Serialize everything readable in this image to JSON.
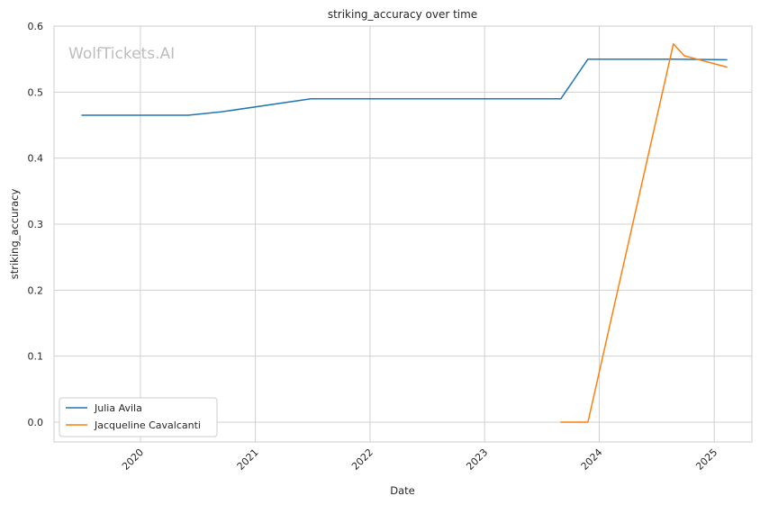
{
  "watermark": "WolfTickets.AI",
  "chart_data": {
    "type": "line",
    "title": "striking_accuracy over time",
    "xlabel": "Date",
    "ylabel": "striking_accuracy",
    "x_axis_type": "date",
    "xlim": [
      "2019-04-01",
      "2025-05-01"
    ],
    "ylim": [
      -0.03,
      0.6
    ],
    "x_ticks": [
      "2020-01-01",
      "2021-01-01",
      "2022-01-01",
      "2023-01-01",
      "2024-01-01",
      "2025-01-01"
    ],
    "x_tick_labels": [
      "2020",
      "2021",
      "2022",
      "2023",
      "2024",
      "2025"
    ],
    "y_ticks": [
      0.0,
      0.1,
      0.2,
      0.3,
      0.4,
      0.5,
      0.6
    ],
    "y_tick_labels": [
      "0.0",
      "0.1",
      "0.2",
      "0.3",
      "0.4",
      "0.5",
      "0.6"
    ],
    "grid": true,
    "legend_position": "lower-left",
    "series": [
      {
        "name": "Julia Avila",
        "color": "#1f77b4",
        "points": [
          {
            "x": "2019-06-29",
            "y": 0.465
          },
          {
            "x": "2020-06-01",
            "y": 0.465
          },
          {
            "x": "2020-09-14",
            "y": 0.47
          },
          {
            "x": "2021-06-27",
            "y": 0.49
          },
          {
            "x": "2023-09-01",
            "y": 0.49
          },
          {
            "x": "2023-11-26",
            "y": 0.55
          },
          {
            "x": "2024-09-01",
            "y": 0.55
          },
          {
            "x": "2025-02-10",
            "y": 0.549
          }
        ]
      },
      {
        "name": "Jacqueline Cavalcanti",
        "color": "#ff7f0e",
        "points": [
          {
            "x": "2023-09-01",
            "y": 0.0
          },
          {
            "x": "2023-11-26",
            "y": 0.0
          },
          {
            "x": "2024-08-24",
            "y": 0.573
          },
          {
            "x": "2024-09-28",
            "y": 0.555
          },
          {
            "x": "2025-02-10",
            "y": 0.538
          }
        ]
      }
    ]
  }
}
